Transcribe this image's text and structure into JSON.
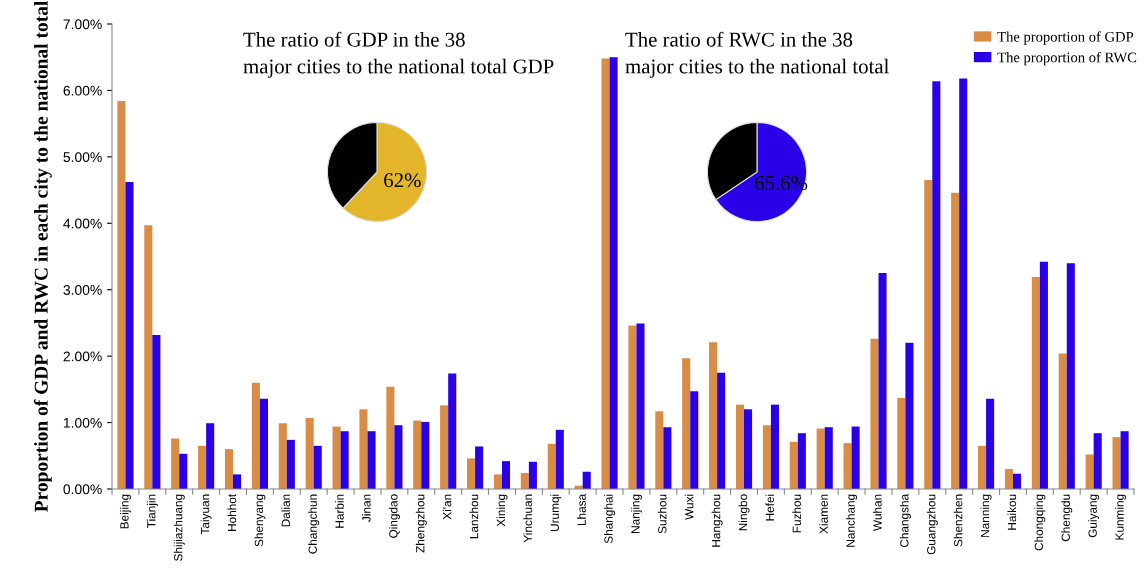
{
  "chart_data": [
    {
      "type": "bar",
      "ylabel": "Proportion of GDP and RWC in each city to the national total",
      "categories": [
        "Beijing",
        "Tianjin",
        "Shijiazhuang",
        "Taiyuan",
        "Hohhot",
        "Shenyang",
        "Dalian",
        "Changchun",
        "Harbin",
        "Jinan",
        "Qingdao",
        "Zhengzhou",
        "Xi'an",
        "Lanzhou",
        "Xining",
        "Yinchuan",
        "Urumqi",
        "Lhasa",
        "Shanghai",
        "Nanjing",
        "Suzhou",
        "Wuxi",
        "Hangzhou",
        "Ningbo",
        "Hefei",
        "Fuzhou",
        "Xiamen",
        "Nanchang",
        "Wuhan",
        "Changsha",
        "Guangzhou",
        "Shenzhen",
        "Nanning",
        "Haikou",
        "Chongqing",
        "Chengdu",
        "Guiyang",
        "Kunming"
      ],
      "series": [
        {
          "name": "The proportion of GDP",
          "color": "#d98c45",
          "values": [
            5.84,
            3.97,
            0.76,
            0.65,
            0.6,
            1.6,
            0.99,
            1.07,
            0.94,
            1.2,
            1.54,
            1.03,
            1.26,
            0.46,
            0.22,
            0.24,
            0.68,
            0.05,
            6.48,
            2.46,
            1.17,
            1.97,
            2.21,
            1.27,
            0.96,
            0.71,
            0.91,
            0.69,
            2.26,
            1.37,
            4.65,
            4.46,
            0.65,
            0.3,
            3.19,
            2.04,
            0.52,
            0.78
          ]
        },
        {
          "name": "The proportion of RWC",
          "color": "#2a00e8",
          "values": [
            4.62,
            2.32,
            0.53,
            0.99,
            0.22,
            1.36,
            0.74,
            0.65,
            0.87,
            0.87,
            0.96,
            1.01,
            1.74,
            0.64,
            0.42,
            0.41,
            0.89,
            0.26,
            6.5,
            2.49,
            0.93,
            1.47,
            1.75,
            1.2,
            1.27,
            0.84,
            0.93,
            0.94,
            3.25,
            2.2,
            6.14,
            6.18,
            1.36,
            0.23,
            3.42,
            3.4,
            0.84,
            0.87
          ]
        }
      ],
      "ylim": [
        0,
        7
      ],
      "yticks": [
        {
          "value": 0,
          "label": "0.00%"
        },
        {
          "value": 1,
          "label": "1.00%"
        },
        {
          "value": 2,
          "label": "2.00%"
        },
        {
          "value": 3,
          "label": "3.00%"
        },
        {
          "value": 4,
          "label": "4.00%"
        },
        {
          "value": 5,
          "label": "5.00%"
        },
        {
          "value": 6,
          "label": "6.00%"
        },
        {
          "value": 7,
          "label": "7.00%"
        }
      ],
      "grid": false,
      "legend": "top right"
    },
    {
      "type": "pie",
      "title": "The ratio of GDP in the 38\nmajor cities to the national total GDP",
      "categories": [
        null,
        null
      ],
      "values": [
        62,
        38
      ],
      "colors": [
        "#e3b52a",
        "#000000"
      ],
      "value_labels": [
        "62%",
        null
      ]
    },
    {
      "type": "pie",
      "title": "The ratio of RWC in the 38\nmajor cities to the national total",
      "categories": [
        null,
        null
      ],
      "values": [
        65.6,
        34.4
      ],
      "colors": [
        "#2a00e8",
        "#000000"
      ],
      "value_labels": [
        "65.6%",
        null
      ]
    }
  ]
}
